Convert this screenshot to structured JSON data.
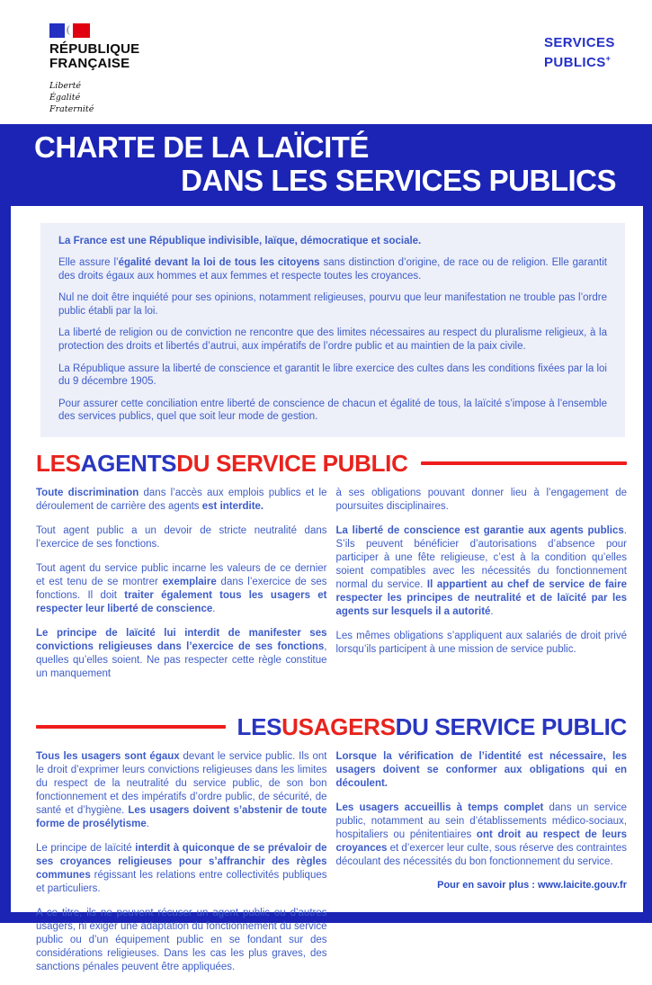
{
  "colors": {
    "banner_blue": "#1b24b4",
    "flag_blue": "#2430c0",
    "flag_red": "#e1000f",
    "services_publics_blue": "#2430c8",
    "body_text_blue": "#3d5cc8",
    "accent_red": "#e8231d",
    "heading_blue": "#2936c0",
    "intro_background": "#edeff9"
  },
  "header": {
    "marianne": {
      "flag_icon": "french-flag-marianne",
      "title_line1": "RÉPUBLIQUE",
      "title_line2": "FRANÇAISE",
      "motto": [
        "Liberté",
        "Égalité",
        "Fraternité"
      ]
    },
    "services_publics": {
      "line1": "SERVICES",
      "line2": "PUBLICS",
      "plus": "+"
    }
  },
  "banner": {
    "title_line1": "CHARTE DE LA LAÏCITÉ",
    "title_line2": "DANS LES SERVICES PUBLICS"
  },
  "intro": {
    "paragraphs": [
      [
        {
          "t": "La France est une République indivisible, laïque, démocratique et sociale.",
          "b": true
        }
      ],
      [
        {
          "t": "Elle assure l’"
        },
        {
          "t": "égalité devant la loi de tous les citoyens",
          "b": true
        },
        {
          "t": " sans distinction d’origine, de race ou de religion. Elle garantit des droits égaux aux hommes et aux femmes et respecte toutes les croyances."
        }
      ],
      [
        {
          "t": "Nul ne doit être inquiété pour ses opinions, notamment religieuses, pourvu que leur manifestation ne trouble pas l’ordre public établi par la loi."
        }
      ],
      [
        {
          "t": "La liberté de religion ou de conviction ne rencontre que des limites nécessaires au respect du pluralisme religieux, à la protection des droits et libertés d’autrui, aux impératifs de l’ordre public et au maintien de la paix civile."
        }
      ],
      [
        {
          "t": "La République assure la liberté de conscience et garantit le libre exercice des cultes dans les conditions fixées par la loi du 9 décembre 1905."
        }
      ],
      [
        {
          "t": "Pour assurer cette conciliation entre liberté de conscience de chacun et égalité de tous, la laïcité s’impose à l’ensemble des services publics, quel que soit leur mode de gestion."
        }
      ]
    ]
  },
  "agents": {
    "heading": {
      "parts": [
        {
          "t": "LES ",
          "c": "red"
        },
        {
          "t": "AGENTS",
          "c": "blue"
        },
        {
          "t": " DU SERVICE PUBLIC",
          "c": "red"
        }
      ]
    },
    "col_left": [
      [
        {
          "t": "Toute discrimination",
          "b": true
        },
        {
          "t": " dans l’accès aux emplois publics et le déroulement de carrière des agents "
        },
        {
          "t": "est interdite.",
          "b": true
        }
      ],
      [
        {
          "t": "Tout agent public a un devoir de stricte neutralité dans l’exercice de ses fonctions."
        }
      ],
      [
        {
          "t": "Tout agent du service public incarne les valeurs de ce dernier et est tenu de se montrer "
        },
        {
          "t": "exemplaire",
          "b": true
        },
        {
          "t": " dans l’exercice de ses fonctions. Il doit "
        },
        {
          "t": "traiter également tous les usagers et respecter leur liberté de conscience",
          "b": true
        },
        {
          "t": "."
        }
      ],
      [
        {
          "t": "Le principe de laïcité lui interdit de manifester ses convictions religieuses dans l’exercice de ses fonctions",
          "b": true
        },
        {
          "t": ", quelles qu’elles soient. Ne pas respecter cette règle constitue un manquement"
        }
      ]
    ],
    "col_right": [
      [
        {
          "t": "à ses obligations pouvant donner lieu à l’engagement de poursuites disciplinaires."
        }
      ],
      [
        {
          "t": "La liberté de conscience est garantie aux agents publics",
          "b": true
        },
        {
          "t": ". S’ils peuvent bénéficier d’autorisations d’absence pour participer à une fête religieuse, c’est à la condition qu’elles soient compatibles avec les nécessités du fonctionnement normal du service. "
        },
        {
          "t": "Il appartient au chef de service de faire respecter les principes de neutralité et de laïcité par les agents sur lesquels il a autorité",
          "b": true
        },
        {
          "t": "."
        }
      ],
      [
        {
          "t": "Les mêmes obligations s’appliquent aux salariés de droit privé lorsqu’ils participent à une mission de service public."
        }
      ]
    ]
  },
  "usagers": {
    "heading": {
      "parts": [
        {
          "t": "LES ",
          "c": "blue"
        },
        {
          "t": "USAGERS",
          "c": "red"
        },
        {
          "t": " DU SERVICE PUBLIC",
          "c": "blue"
        }
      ]
    },
    "col_left": [
      [
        {
          "t": "Tous les usagers sont égaux",
          "b": true
        },
        {
          "t": " devant le service public. Ils ont le droit d’exprimer leurs convictions religieuses dans les limites du respect de la neutralité du service public, de son bon fonctionnement et des impératifs d’ordre public, de sécurité, de santé et d’hygiène. "
        },
        {
          "t": "Les usagers doivent s’abstenir de toute forme de prosélytisme",
          "b": true
        },
        {
          "t": "."
        }
      ],
      [
        {
          "t": "Le principe de laïcité "
        },
        {
          "t": "interdit à quiconque de se prévaloir de ses croyances religieuses pour s’affranchir des règles communes",
          "b": true
        },
        {
          "t": " régissant les relations entre collectivités publiques et particuliers."
        }
      ],
      [
        {
          "t": "A ce titre, ils ne peuvent récuser un agent public ou d’autres usagers, ni exiger une adaptation du fonctionnement du service public ou d’un équipement public en se fondant sur des considérations religieuses. Dans les cas les plus graves, des sanctions pénales peuvent être appliquées."
        }
      ]
    ],
    "col_right": [
      [
        {
          "t": "Lorsque la vérification de l’identité est nécessaire, les usagers doivent se conformer aux obligations qui en découlent.",
          "b": true
        }
      ],
      [
        {
          "t": "Les usagers accueillis à temps complet",
          "b": true
        },
        {
          "t": " dans un service public, notamment au sein d’établissements médico-sociaux, hospitaliers ou pénitentiaires "
        },
        {
          "t": "ont droit au respect de leurs croyances",
          "b": true
        },
        {
          "t": " et d’exercer leur culte, sous réserve des contraintes découlant des nécessités du bon fonctionnement du service."
        }
      ]
    ]
  },
  "footer": {
    "label": "Pour en savoir plus : ",
    "url": "www.laicite.gouv.fr"
  }
}
